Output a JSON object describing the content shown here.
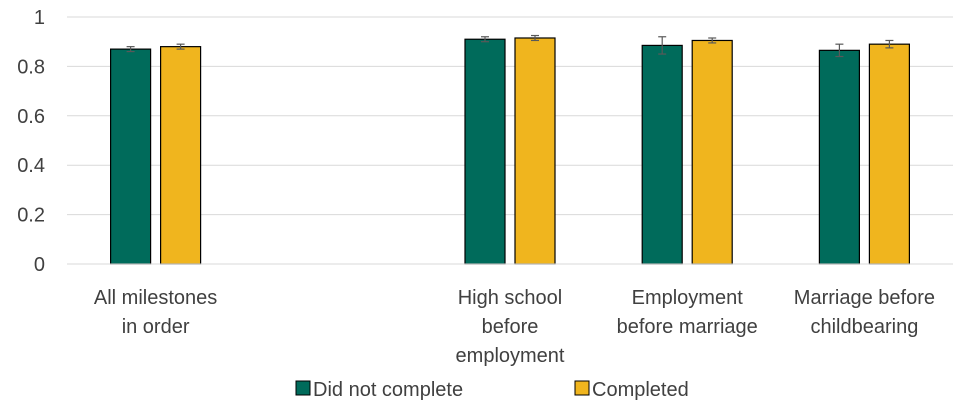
{
  "chart_data": {
    "type": "bar",
    "title": "",
    "xlabel": "",
    "ylabel": "",
    "ylim": [
      0,
      1
    ],
    "yticks": [
      0,
      0.2,
      0.4,
      0.6,
      0.8,
      1
    ],
    "ytick_labels": [
      "0",
      "0.2",
      "0.4",
      "0.6",
      "0.8",
      "1"
    ],
    "grid": true,
    "legend_position": "bottom",
    "categories": [
      "All milestones in order",
      "",
      "High school before employment",
      "Employment before marriage",
      "Marriage before childbearing"
    ],
    "category_label_lines": [
      [
        "All milestones",
        "in order"
      ],
      [],
      [
        "High school",
        "before",
        "employment"
      ],
      [
        "Employment",
        "before marriage"
      ],
      [
        "Marriage before",
        "childbearing"
      ]
    ],
    "series": [
      {
        "name": "Did not complete",
        "color": "#006b5b",
        "values": [
          0.87,
          null,
          0.91,
          0.885,
          0.865
        ],
        "error": [
          0.01,
          null,
          0.01,
          0.035,
          0.025
        ]
      },
      {
        "name": "Completed",
        "color": "#f0b51e",
        "values": [
          0.88,
          null,
          0.915,
          0.905,
          0.89
        ],
        "error": [
          0.01,
          null,
          0.01,
          0.01,
          0.015
        ]
      }
    ]
  }
}
